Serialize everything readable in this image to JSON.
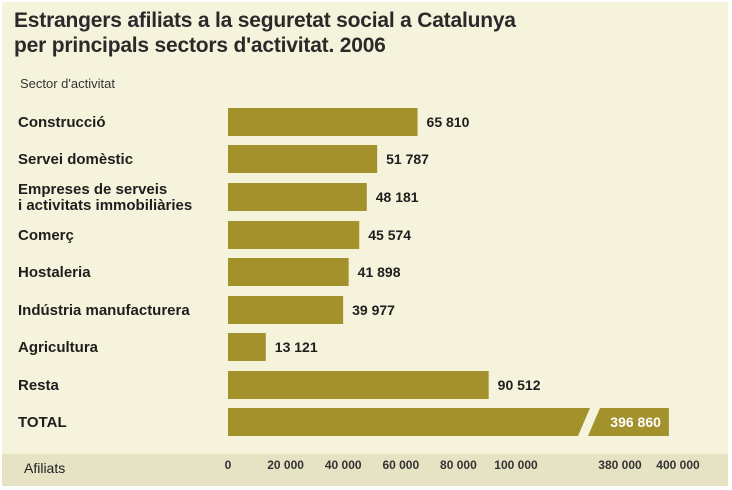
{
  "title_line1": "Estrangers afiliats a la seguretat social a Catalunya",
  "title_line2": "per principals sectors d'activitat. 2006",
  "category_header": "Sector d'activitat",
  "x_axis_label": "Afiliats",
  "colors": {
    "bar": "#a3912c",
    "background": "#f6f3dc",
    "footer": "#e6e2c4"
  },
  "chart_data": {
    "type": "bar",
    "orientation": "horizontal",
    "title": "Estrangers afiliats a la seguretat social a Catalunya per principals sectors d'activitat. 2006",
    "ylabel": "Sector d'activitat",
    "xlabel": "Afiliats",
    "axis_break": [
      100000,
      380000
    ],
    "xlim": [
      0,
      400000
    ],
    "categories": [
      [
        "Construcció"
      ],
      [
        "Servei domèstic"
      ],
      [
        "Empreses de serveis",
        "i activitats immobiliàries"
      ],
      [
        "Comerç"
      ],
      [
        "Hostaleria"
      ],
      [
        "Indústria manufacturera"
      ],
      [
        "Agricultura"
      ],
      [
        "Resta"
      ],
      [
        "TOTAL"
      ]
    ],
    "values": [
      65810,
      51787,
      48181,
      45574,
      41898,
      39977,
      13121,
      90512,
      396860
    ],
    "value_labels": [
      "65 810",
      "51 787",
      "48 181",
      "45 574",
      "41 898",
      "39 977",
      "13 121",
      "90 512",
      "396 860"
    ],
    "ticks_low": [
      0,
      20000,
      40000,
      60000,
      80000,
      100000
    ],
    "tick_labels_low": [
      "0",
      "20 000",
      "40 000",
      "60 000",
      "80 000",
      "100 000"
    ],
    "ticks_high": [
      380000,
      400000
    ],
    "tick_labels_high": [
      "380 000",
      "400 000"
    ]
  }
}
